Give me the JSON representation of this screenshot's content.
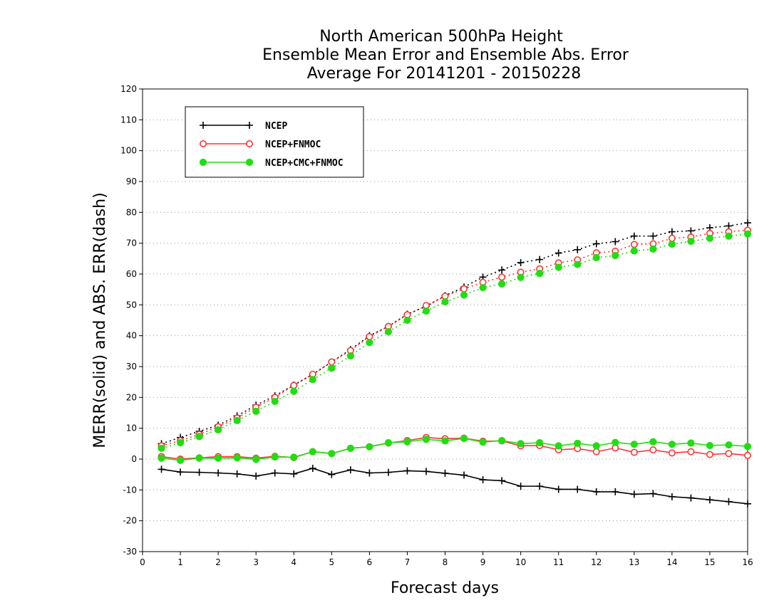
{
  "chart_data": {
    "type": "line",
    "title": [
      "North American 500hPa Height",
      "Ensemble Mean Error and Ensemble Abs. Error",
      "Average For 20141201 - 20150228"
    ],
    "xlabel": "Forecast days",
    "ylabel": "MERR(solid) and ABS. ERR(dash)",
    "xlim": [
      0,
      16
    ],
    "ylim": [
      -30,
      120
    ],
    "xticks": [
      0,
      1,
      2,
      3,
      4,
      5,
      6,
      7,
      8,
      9,
      10,
      11,
      12,
      13,
      14,
      15,
      16
    ],
    "yticks": [
      -30,
      -20,
      -10,
      0,
      10,
      20,
      30,
      40,
      50,
      60,
      70,
      80,
      90,
      100,
      110,
      120
    ],
    "grid": "horizontal dotted",
    "legend_position": "top-left",
    "x": [
      0.5,
      1,
      1.5,
      2,
      2.5,
      3,
      3.5,
      4,
      4.5,
      5,
      5.5,
      6,
      6.5,
      7,
      7.5,
      8,
      8.5,
      9,
      9.5,
      10,
      10.5,
      11,
      11.5,
      12,
      12.5,
      13,
      13.5,
      14,
      14.5,
      15,
      15.5,
      16
    ],
    "series": [
      {
        "name": "NCEP",
        "color": "#000000",
        "marker": "plus",
        "merr": [
          -3.3,
          -4.2,
          -4.3,
          -4.5,
          -4.8,
          -5.5,
          -4.5,
          -4.8,
          -3.0,
          -5.0,
          -3.5,
          -4.5,
          -4.3,
          -3.8,
          -4.0,
          -4.6,
          -5.2,
          -6.7,
          -7.0,
          -8.8,
          -8.8,
          -9.8,
          -9.8,
          -10.6,
          -10.6,
          -11.4,
          -11.2,
          -12.2,
          -12.6,
          -13.2,
          -13.8,
          -14.5
        ],
        "abs_err": [
          5.0,
          7.0,
          9.0,
          11.0,
          14.0,
          17.5,
          20.5,
          24.0,
          27.5,
          31.5,
          35.5,
          40.0,
          43.0,
          47.0,
          49.5,
          53.0,
          55.8,
          59.0,
          61.3,
          63.7,
          64.7,
          66.8,
          67.9,
          69.8,
          70.5,
          72.3,
          72.3,
          73.7,
          74.0,
          75.0,
          75.6,
          76.6
        ]
      },
      {
        "name": "NCEP+FNMOC",
        "color": "#ff3333",
        "marker": "open-circle",
        "merr": [
          0.8,
          0.0,
          0.4,
          0.8,
          0.8,
          0.3,
          0.9,
          0.5,
          2.4,
          1.8,
          3.5,
          4.0,
          5.2,
          6.0,
          7.0,
          6.6,
          6.8,
          5.8,
          5.9,
          4.3,
          4.4,
          3.0,
          3.4,
          2.4,
          3.6,
          2.2,
          3.0,
          2.0,
          2.4,
          1.5,
          1.8,
          1.2
        ],
        "abs_err": [
          4.3,
          6.0,
          8.0,
          10.5,
          13.3,
          16.8,
          20.0,
          23.9,
          27.5,
          31.5,
          35.2,
          39.7,
          43.0,
          46.8,
          49.8,
          52.8,
          55.2,
          57.3,
          59.0,
          60.6,
          61.7,
          63.6,
          64.6,
          66.9,
          67.4,
          69.6,
          69.8,
          71.6,
          72.0,
          73.2,
          73.7,
          74.2
        ]
      },
      {
        "name": "NCEP+CMC+FNMOC",
        "color": "#22dd11",
        "marker": "filled-circle",
        "merr": [
          0.3,
          -0.4,
          0.3,
          0.3,
          0.4,
          -0.1,
          0.7,
          0.6,
          2.4,
          1.8,
          3.5,
          4.0,
          5.3,
          5.6,
          6.4,
          5.9,
          6.7,
          5.5,
          6.0,
          5.0,
          5.3,
          4.3,
          5.1,
          4.3,
          5.4,
          4.8,
          5.6,
          4.8,
          5.2,
          4.4,
          4.6,
          4.1
        ],
        "abs_err": [
          3.5,
          5.3,
          7.3,
          9.5,
          12.5,
          15.5,
          18.7,
          22.0,
          25.8,
          29.5,
          33.5,
          37.8,
          41.3,
          45.0,
          48.0,
          51.0,
          53.2,
          55.6,
          56.8,
          58.9,
          60.2,
          62.2,
          63.1,
          65.3,
          66.0,
          67.5,
          68.1,
          69.7,
          70.6,
          71.6,
          72.3,
          73.0
        ]
      }
    ]
  }
}
